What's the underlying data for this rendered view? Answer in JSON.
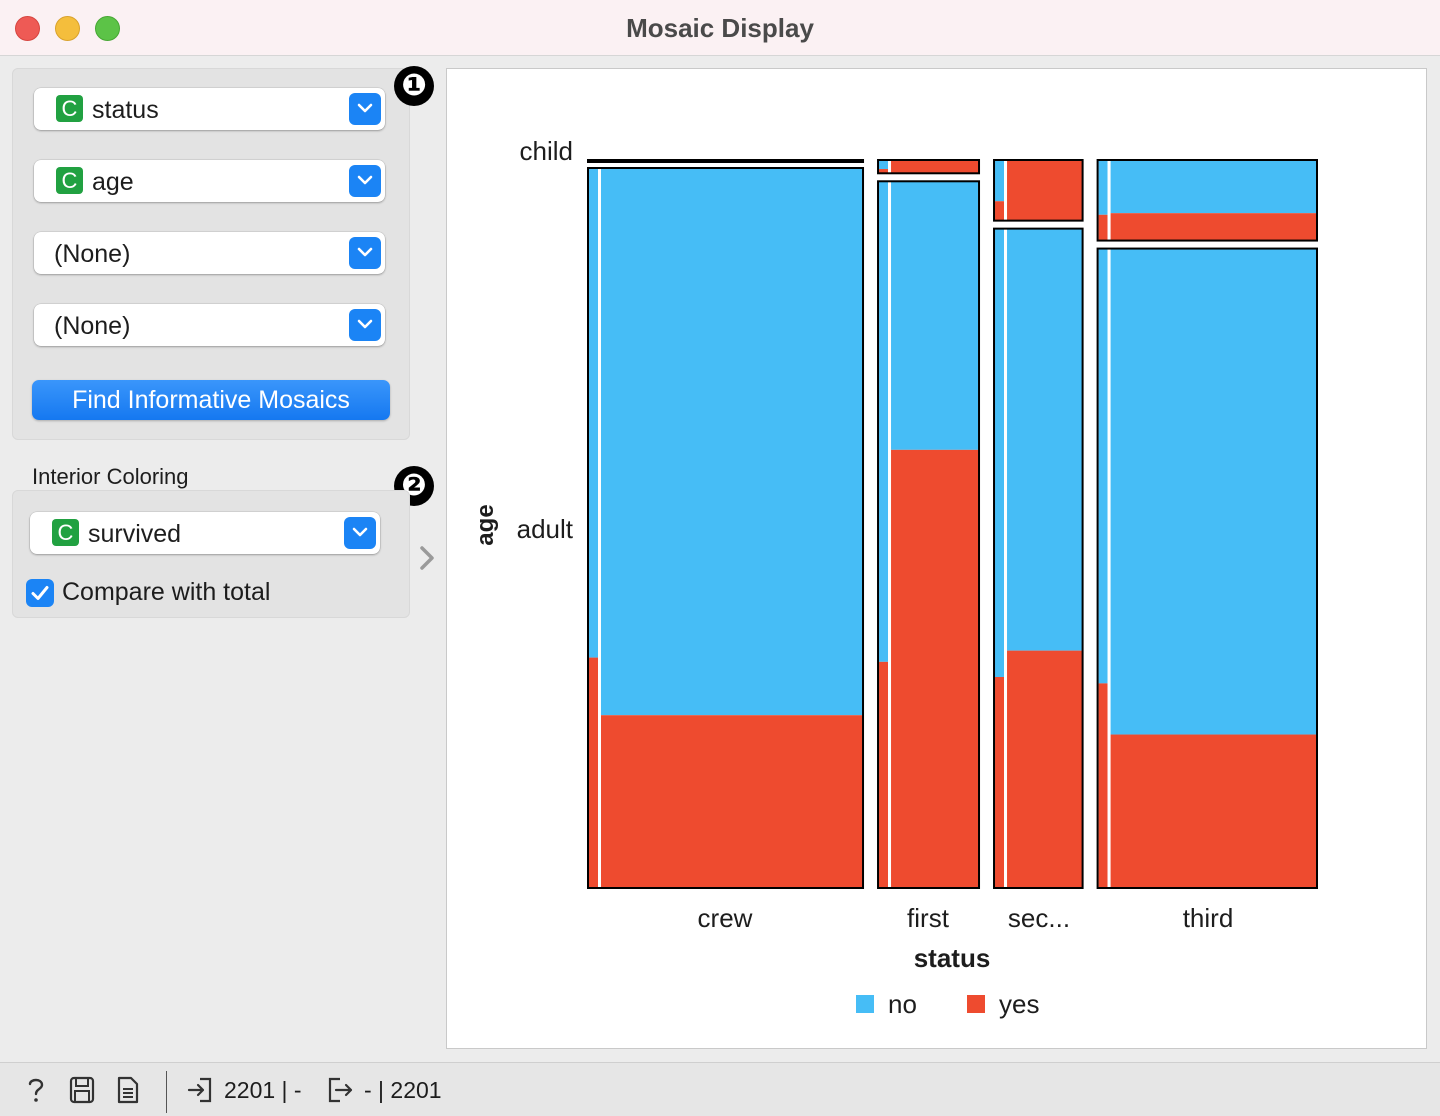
{
  "window": {
    "title": "Mosaic Display"
  },
  "controls": {
    "variables": [
      {
        "label": "status",
        "type_badge": "C"
      },
      {
        "label": "age",
        "type_badge": "C"
      },
      {
        "label": "(None)",
        "type_badge": ""
      },
      {
        "label": "(None)",
        "type_badge": ""
      }
    ],
    "find_button": "Find Informative Mosaics",
    "section_label": "Interior Coloring",
    "coloring": {
      "label": "survived",
      "type_badge": "C"
    },
    "compare_label": "Compare with total",
    "compare_checked": true,
    "markers": [
      "❶",
      "❷"
    ]
  },
  "chart_data": {
    "type": "mosaic",
    "xlabel": "status",
    "ylabel": "age",
    "x_categories": [
      "crew",
      "first",
      "sec...",
      "third"
    ],
    "y_categories": [
      "child",
      "adult"
    ],
    "legend": [
      {
        "name": "no",
        "color": "#46bdf6"
      },
      {
        "name": "yes",
        "color": "#ee4b2f"
      }
    ],
    "legend_position": "bottom",
    "cells": [
      {
        "status": "crew",
        "age": "child",
        "count": 0,
        "yes_fraction": 0
      },
      {
        "status": "crew",
        "age": "adult",
        "count": 885,
        "yes_fraction": 0.24
      },
      {
        "status": "first",
        "age": "child",
        "count": 6,
        "yes_fraction": 1.0
      },
      {
        "status": "first",
        "age": "adult",
        "count": 319,
        "yes_fraction": 0.62
      },
      {
        "status": "sec...",
        "age": "child",
        "count": 24,
        "yes_fraction": 1.0
      },
      {
        "status": "sec...",
        "age": "adult",
        "count": 261,
        "yes_fraction": 0.36
      },
      {
        "status": "third",
        "age": "child",
        "count": 79,
        "yes_fraction": 0.34
      },
      {
        "status": "third",
        "age": "adult",
        "count": 627,
        "yes_fraction": 0.24
      }
    ],
    "overall_yes_fraction": 0.32
  },
  "statusbar": {
    "input_summary": "2201 | -",
    "output_summary": "- | 2201"
  }
}
